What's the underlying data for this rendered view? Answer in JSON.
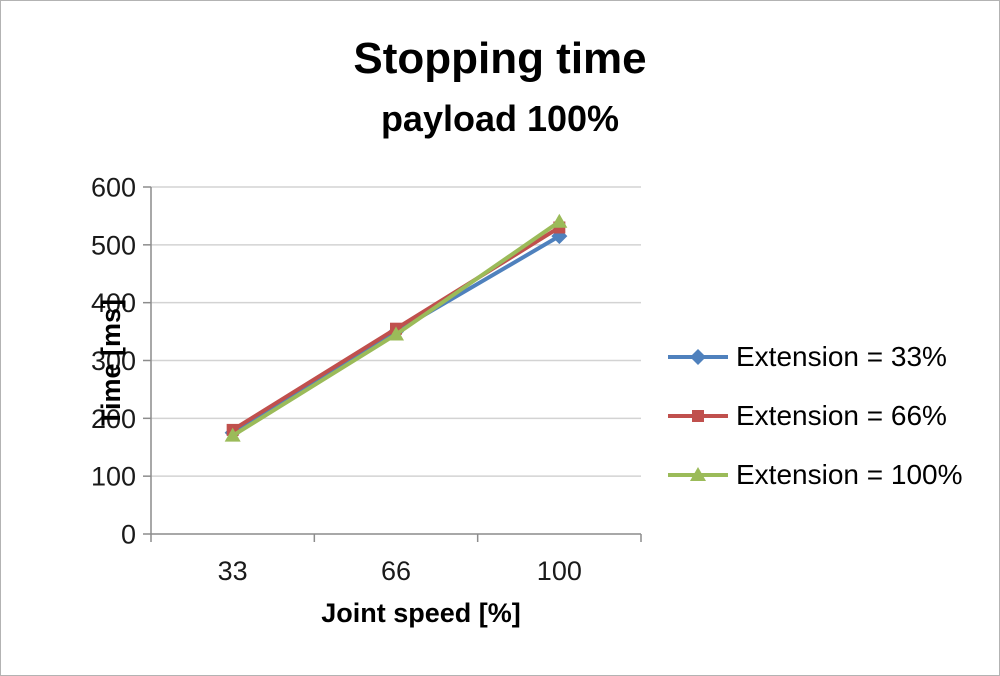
{
  "chart_data": {
    "type": "line",
    "title": "Stopping time",
    "subtitle": "payload 100%",
    "xlabel": "Joint speed [%]",
    "ylabel": "Time [ms]",
    "categories": [
      "33",
      "66",
      "100"
    ],
    "series": [
      {
        "name": "Extension = 33%",
        "marker": "diamond",
        "color": "#4F81BD",
        "values": [
          175,
          350,
          515
        ]
      },
      {
        "name": "Extension = 66%",
        "marker": "square",
        "color": "#C0504D",
        "values": [
          180,
          355,
          530
        ]
      },
      {
        "name": "Extension = 100%",
        "marker": "triangle",
        "color": "#9BBB59",
        "values": [
          170,
          345,
          540
        ]
      }
    ],
    "ylim": [
      0,
      600
    ],
    "ytick_step": 100,
    "yticks": [
      "0",
      "100",
      "200",
      "300",
      "400",
      "500",
      "600"
    ],
    "grid": true,
    "legend_position": "right",
    "gridline_color": "#D3D3D3",
    "axis_color": "#8C8C8C",
    "text_color": "#1A1A1A"
  }
}
